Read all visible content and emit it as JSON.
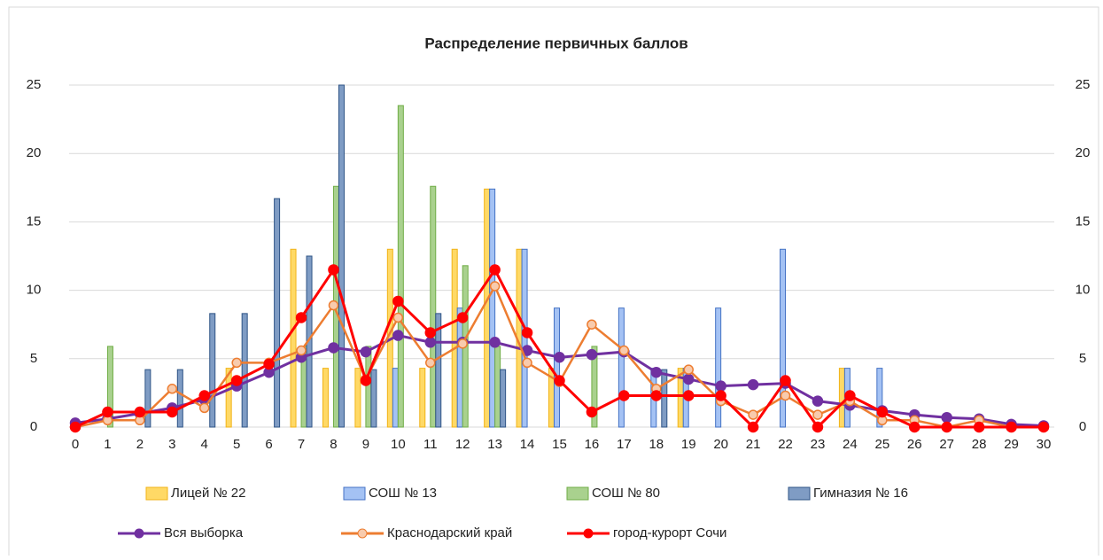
{
  "chart_data": {
    "type": "bar-line",
    "title": "Распределение первичных баллов",
    "categories": [
      "0",
      "1",
      "2",
      "3",
      "4",
      "5",
      "6",
      "7",
      "8",
      "9",
      "10",
      "11",
      "12",
      "13",
      "14",
      "15",
      "16",
      "17",
      "18",
      "19",
      "20",
      "21",
      "22",
      "23",
      "24",
      "25",
      "26",
      "27",
      "28",
      "29",
      "30"
    ],
    "ylim": [
      0,
      25
    ],
    "yticks": [
      0,
      5,
      10,
      15,
      20,
      25
    ],
    "grid": true,
    "bar_series": [
      {
        "name": "Лицей № 22",
        "color": "#ffd966",
        "values": [
          0,
          0,
          0,
          0,
          0,
          4.3,
          0,
          13,
          4.3,
          4.3,
          13,
          4.3,
          13,
          17.4,
          13,
          4.3,
          0,
          0,
          0,
          4.3,
          0,
          0,
          0,
          0,
          4.3,
          0,
          0,
          0,
          0,
          0,
          0
        ]
      },
      {
        "name": "СОШ № 13",
        "color": "#a4c2f4",
        "values": [
          0,
          0,
          0,
          0,
          0,
          0,
          0,
          0,
          0,
          0,
          4.3,
          0,
          8.7,
          17.4,
          13,
          8.7,
          0,
          8.7,
          4.3,
          4.3,
          8.7,
          0,
          13,
          0,
          4.3,
          4.3,
          0,
          0,
          0,
          0,
          0
        ]
      },
      {
        "name": "СОШ № 80",
        "color": "#a9d18e",
        "values": [
          0,
          5.9,
          0,
          0,
          0,
          0,
          0,
          5.9,
          17.6,
          5.9,
          23.5,
          17.6,
          11.8,
          5.9,
          0,
          0,
          5.9,
          0,
          0,
          0,
          0,
          0,
          0,
          0,
          0,
          0,
          0,
          0,
          0,
          0,
          0
        ]
      },
      {
        "name": "Гимназия № 16",
        "color": "#7f9cc4",
        "values": [
          0,
          0,
          4.2,
          4.2,
          8.3,
          8.3,
          16.7,
          12.5,
          25,
          4.2,
          0,
          8.3,
          0,
          4.2,
          0,
          0,
          0,
          0,
          4.2,
          0,
          0,
          0,
          0,
          0,
          0,
          0,
          0,
          0,
          0,
          0,
          0
        ]
      }
    ],
    "line_series": [
      {
        "name": "Вся выборка",
        "color": "#7030a0",
        "values": [
          0.3,
          0.6,
          1.0,
          1.4,
          2.0,
          3.0,
          4.0,
          5.1,
          5.8,
          5.5,
          6.7,
          6.2,
          6.2,
          6.2,
          5.6,
          5.1,
          5.3,
          5.5,
          4.0,
          3.5,
          3.0,
          3.1,
          3.2,
          1.9,
          1.6,
          1.2,
          0.9,
          0.7,
          0.6,
          0.2,
          0.1
        ]
      },
      {
        "name": "Краснодарский край",
        "color": "#ed7d31",
        "values": [
          0,
          0.5,
          0.5,
          2.8,
          1.4,
          4.7,
          4.7,
          5.6,
          8.9,
          3.5,
          8.0,
          4.7,
          6.1,
          10.3,
          4.7,
          3.3,
          7.5,
          5.6,
          2.8,
          4.2,
          1.9,
          0.9,
          2.3,
          0.9,
          1.9,
          0.5,
          0.5,
          0,
          0.5,
          0,
          0
        ]
      },
      {
        "name": "город-курорт Сочи",
        "color": "#ff0000",
        "values": [
          0,
          1.1,
          1.1,
          1.1,
          2.3,
          3.4,
          4.6,
          8.0,
          11.5,
          3.4,
          9.2,
          6.9,
          8.0,
          11.5,
          6.9,
          3.4,
          1.1,
          2.3,
          2.3,
          2.3,
          2.3,
          0,
          3.4,
          0,
          2.3,
          1.1,
          0,
          0,
          0,
          0,
          0
        ]
      }
    ]
  }
}
